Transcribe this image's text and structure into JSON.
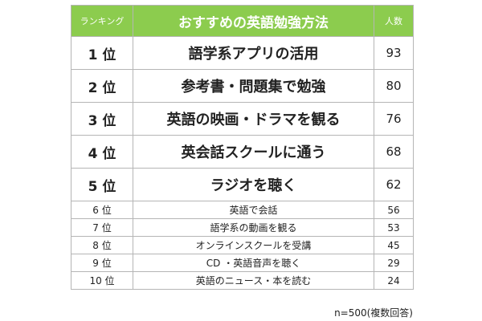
{
  "chart_data": {
    "type": "table",
    "headers": {
      "rank": "ランキング",
      "method": "おすすめの英語勉強方法",
      "count": "人数"
    },
    "rows": [
      {
        "rank": "1 位",
        "method": "語学系アプリの活用",
        "count": "93"
      },
      {
        "rank": "2 位",
        "method": "参考書・問題集で勉強",
        "count": "80"
      },
      {
        "rank": "3 位",
        "method": "英語の映画・ドラマを観る",
        "count": "76"
      },
      {
        "rank": "4 位",
        "method": "英会話スクールに通う",
        "count": "68"
      },
      {
        "rank": "5 位",
        "method": "ラジオを聴く",
        "count": "62"
      },
      {
        "rank": "6 位",
        "method": "英語で会話",
        "count": "56"
      },
      {
        "rank": "7 位",
        "method": "語学系の動画を観る",
        "count": "53"
      },
      {
        "rank": "8 位",
        "method": "オンラインスクールを受講",
        "count": "45"
      },
      {
        "rank": "9 位",
        "method": "CD ・英語音声を聴く",
        "count": "29"
      },
      {
        "rank": "10 位",
        "method": "英語のニュース・本を読む",
        "count": "24"
      }
    ],
    "note": "n=500(複数回答)"
  },
  "colors": {
    "header_bg": "#8ccc4e",
    "header_text": "#ffffff",
    "border": "#b5b5b5"
  }
}
